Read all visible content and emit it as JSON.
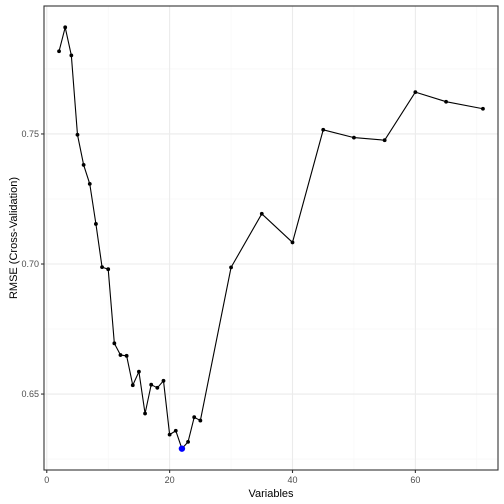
{
  "chart_data": {
    "type": "line",
    "xlabel": "Variables",
    "ylabel": "RMSE (Cross-Validation)",
    "xlim": [
      -0.45,
      73.45
    ],
    "ylim": [
      0.6208,
      0.7992
    ],
    "x_ticks": [
      0,
      20,
      40,
      60
    ],
    "y_ticks": [
      0.65,
      0.7,
      0.75
    ],
    "y_tick_labels": [
      "0.65",
      "0.70",
      "0.75"
    ],
    "grid": true,
    "series": [
      {
        "x": [
          2,
          3,
          4,
          5,
          6,
          7,
          8,
          9,
          10,
          11,
          12,
          13,
          14,
          15,
          16,
          17,
          18,
          19,
          20,
          21,
          22,
          23,
          24,
          25,
          30,
          35,
          40,
          45,
          50,
          55,
          60,
          65,
          71
        ],
        "y": [
          0.7818,
          0.791,
          0.7802,
          0.7497,
          0.7381,
          0.7308,
          0.7154,
          0.6988,
          0.698,
          0.6695,
          0.665,
          0.6647,
          0.6534,
          0.6586,
          0.6425,
          0.6536,
          0.6524,
          0.6551,
          0.6344,
          0.6359,
          0.629,
          0.6316,
          0.6411,
          0.6398,
          0.6987,
          0.7193,
          0.7083,
          0.7516,
          0.7486,
          0.7476,
          0.7661,
          0.7624,
          0.7597
        ],
        "color": "#000000"
      }
    ],
    "highlight": {
      "x": 22,
      "y": 0.629,
      "color": "#0000FF"
    },
    "colors": {
      "panel_border": "#333333",
      "grid_major": "#EBEBEB",
      "grid_minor": "#F5F5F5",
      "tick_text": "#4D4D4D"
    }
  }
}
